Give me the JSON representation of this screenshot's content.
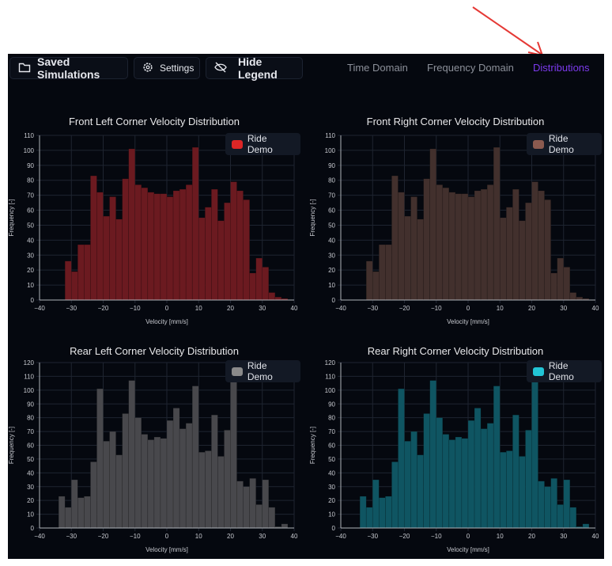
{
  "toolbar": {
    "saved_label": "Saved Simulations",
    "settings_label": "Settings",
    "hide_legend_label": "Hide Legend"
  },
  "tabs": [
    {
      "label": "Time Domain",
      "active": false
    },
    {
      "label": "Frequency Domain",
      "active": false
    },
    {
      "label": "Distributions",
      "active": true
    }
  ],
  "annotation_color": "#e53935",
  "chart_data": [
    {
      "type": "bar",
      "title": "Front Left Corner Velocity Distribution",
      "xlabel": "Velocity [mm/s]",
      "ylabel": "Frequency [-]",
      "xlim": [
        -40,
        40
      ],
      "ylim": [
        0,
        110
      ],
      "ytick_step": 10,
      "xtick_step": 10,
      "grid": true,
      "legend": "top-right",
      "bin_width": 2,
      "bin_starts": [
        -32,
        -30,
        -28,
        -26,
        -24,
        -22,
        -20,
        -18,
        -16,
        -14,
        -12,
        -10,
        -8,
        -6,
        -4,
        -2,
        0,
        2,
        4,
        6,
        8,
        10,
        12,
        14,
        16,
        18,
        20,
        22,
        24,
        26,
        28,
        30,
        32,
        34,
        36
      ],
      "series": [
        {
          "name": "Ride Demo",
          "color": "#dc2626",
          "fill": "#6b1a20",
          "values": [
            26,
            19,
            37,
            37,
            83,
            72,
            56,
            69,
            54,
            81,
            101,
            77,
            75,
            72,
            71,
            71,
            69,
            73,
            74,
            77,
            102,
            55,
            62,
            74,
            53,
            65,
            79,
            73,
            67,
            18,
            28,
            22,
            5,
            2,
            1
          ]
        }
      ]
    },
    {
      "type": "bar",
      "title": "Front Right Corner Velocity Distribution",
      "xlabel": "Velocity [mm/s]",
      "ylabel": "Frequency [-]",
      "xlim": [
        -40,
        40
      ],
      "ylim": [
        0,
        110
      ],
      "ytick_step": 10,
      "xtick_step": 10,
      "grid": true,
      "legend": "top-right",
      "bin_width": 2,
      "bin_starts": [
        -32,
        -30,
        -28,
        -26,
        -24,
        -22,
        -20,
        -18,
        -16,
        -14,
        -12,
        -10,
        -8,
        -6,
        -4,
        -2,
        0,
        2,
        4,
        6,
        8,
        10,
        12,
        14,
        16,
        18,
        20,
        22,
        24,
        26,
        28,
        30,
        32,
        34,
        36
      ],
      "series": [
        {
          "name": "Ride Demo",
          "color": "#8b5a4f",
          "fill": "#42302d",
          "values": [
            26,
            19,
            37,
            37,
            83,
            72,
            56,
            69,
            54,
            81,
            101,
            77,
            75,
            72,
            71,
            71,
            69,
            73,
            74,
            77,
            102,
            55,
            62,
            74,
            53,
            65,
            79,
            73,
            67,
            18,
            28,
            22,
            5,
            2,
            1
          ]
        }
      ]
    },
    {
      "type": "bar",
      "title": "Rear Left Corner Velocity Distribution",
      "xlabel": "Velocity [mm/s]",
      "ylabel": "Frequency [-]",
      "xlim": [
        -40,
        40
      ],
      "ylim": [
        0,
        120
      ],
      "ytick_step": 10,
      "xtick_step": 10,
      "grid": true,
      "legend": "top-right",
      "bin_width": 2,
      "bin_starts": [
        -34,
        -32,
        -30,
        -28,
        -26,
        -24,
        -22,
        -20,
        -18,
        -16,
        -14,
        -12,
        -10,
        -8,
        -6,
        -4,
        -2,
        0,
        2,
        4,
        6,
        8,
        10,
        12,
        14,
        16,
        18,
        20,
        22,
        24,
        26,
        28,
        30,
        32,
        34,
        36
      ],
      "series": [
        {
          "name": "Ride Demo",
          "color": "#8a8a8a",
          "fill": "#48484c",
          "values": [
            23,
            15,
            35,
            22,
            23,
            48,
            101,
            63,
            70,
            53,
            83,
            107,
            80,
            68,
            64,
            66,
            65,
            78,
            87,
            72,
            76,
            103,
            55,
            56,
            82,
            52,
            71,
            115,
            34,
            30,
            36,
            17,
            35,
            15,
            1,
            3
          ]
        }
      ]
    },
    {
      "type": "bar",
      "title": "Rear Right Corner Velocity Distribution",
      "xlabel": "Velocity [mm/s]",
      "ylabel": "Frequency [-]",
      "xlim": [
        -40,
        40
      ],
      "ylim": [
        0,
        120
      ],
      "ytick_step": 10,
      "xtick_step": 10,
      "grid": true,
      "legend": "top-right",
      "bin_width": 2,
      "bin_starts": [
        -34,
        -32,
        -30,
        -28,
        -26,
        -24,
        -22,
        -20,
        -18,
        -16,
        -14,
        -12,
        -10,
        -8,
        -6,
        -4,
        -2,
        0,
        2,
        4,
        6,
        8,
        10,
        12,
        14,
        16,
        18,
        20,
        22,
        24,
        26,
        28,
        30,
        32,
        34,
        36
      ],
      "series": [
        {
          "name": "Ride Demo",
          "color": "#22c5d6",
          "fill": "#0f5562",
          "values": [
            23,
            15,
            35,
            22,
            23,
            48,
            101,
            63,
            70,
            53,
            83,
            107,
            80,
            68,
            64,
            66,
            65,
            78,
            87,
            72,
            76,
            103,
            55,
            56,
            82,
            52,
            71,
            115,
            34,
            30,
            36,
            17,
            35,
            15,
            1,
            3
          ]
        }
      ]
    }
  ]
}
